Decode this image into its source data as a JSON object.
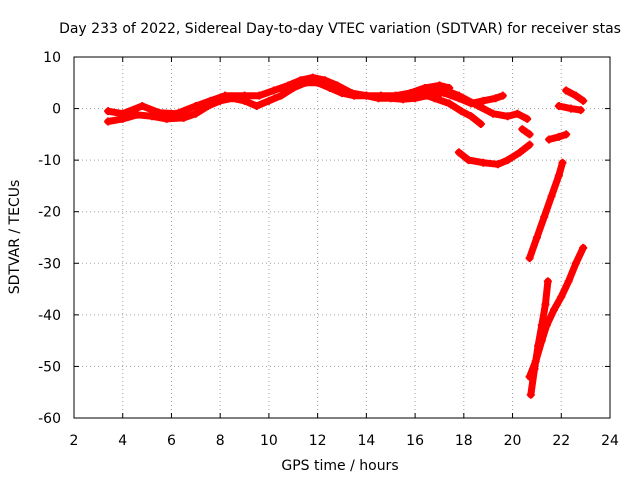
{
  "chart_data": {
    "type": "scatter",
    "title": "Day 233 of 2022, Sidereal Day-to-day VTEC variation (SDTVAR) for receiver stas",
    "xlabel": "GPS time / hours",
    "ylabel": "SDTVAR / TECUs",
    "xlim": [
      2,
      24
    ],
    "ylim": [
      -60,
      10
    ],
    "xticks": [
      2,
      4,
      6,
      8,
      10,
      12,
      14,
      16,
      18,
      20,
      22,
      24
    ],
    "yticks": [
      10,
      0,
      -10,
      -20,
      -30,
      -40,
      -50,
      -60
    ],
    "grid": true,
    "legend": "none",
    "series_color": "#ff0000",
    "series": [
      {
        "name": "main-band-low",
        "x": [
          3.4,
          4.0,
          4.6,
          5.2,
          5.8,
          6.5,
          7.0,
          7.5,
          8.0,
          8.5,
          9.0,
          9.5,
          10.0,
          10.5,
          11.0,
          11.5,
          12.0,
          12.5,
          13.0,
          13.5,
          14.0,
          14.5,
          15.0,
          15.5,
          16.0,
          16.5,
          17.0
        ],
        "y": [
          -2.5,
          -2.0,
          -1.2,
          -1.5,
          -2.0,
          -1.8,
          -1.0,
          0.5,
          1.5,
          2.0,
          1.5,
          0.5,
          1.5,
          2.5,
          4.0,
          5.0,
          5.0,
          4.0,
          3.0,
          2.5,
          2.5,
          2.0,
          2.0,
          1.8,
          2.0,
          2.5,
          2.8
        ]
      },
      {
        "name": "main-band-high",
        "x": [
          3.4,
          4.0,
          4.8,
          5.5,
          6.2,
          7.0,
          7.6,
          8.2,
          9.0,
          9.6,
          10.2,
          10.8,
          11.3,
          11.8,
          12.3,
          12.8,
          13.4,
          14.0,
          14.6,
          15.2,
          15.8,
          16.4,
          17.0,
          17.4
        ],
        "y": [
          -0.5,
          -1.0,
          0.5,
          -0.8,
          -1.0,
          0.5,
          1.5,
          2.5,
          2.5,
          2.5,
          3.5,
          4.5,
          5.5,
          6.0,
          5.5,
          4.5,
          3.0,
          2.5,
          2.5,
          2.5,
          3.0,
          4.0,
          4.5,
          4.0
        ]
      },
      {
        "name": "late-upper-track",
        "x": [
          16.5,
          17.2,
          17.8,
          18.3,
          18.8,
          19.3,
          19.6
        ],
        "y": [
          3.5,
          3.0,
          2.0,
          1.0,
          1.5,
          2.0,
          2.5
        ]
      },
      {
        "name": "late-lower-track",
        "x": [
          16.2,
          16.8,
          17.4,
          17.9,
          18.3,
          18.7
        ],
        "y": [
          3.0,
          2.0,
          1.0,
          -0.5,
          -1.5,
          -3.0
        ]
      },
      {
        "name": "late-mid-track",
        "x": [
          17.0,
          17.8,
          18.6,
          19.2,
          19.8,
          20.2,
          20.6
        ],
        "y": [
          4.0,
          2.5,
          0.5,
          -1.0,
          -1.5,
          -1.0,
          -2.0
        ]
      },
      {
        "name": "dip-arc",
        "x": [
          17.8,
          18.2,
          18.8,
          19.4,
          19.8,
          20.3,
          20.7
        ],
        "y": [
          -8.5,
          -10.0,
          -10.5,
          -10.8,
          -10.0,
          -8.5,
          -7.0
        ]
      },
      {
        "name": "short-segment",
        "x": [
          20.4,
          20.7
        ],
        "y": [
          -4.0,
          -5.0
        ]
      },
      {
        "name": "right-top-a",
        "x": [
          22.2,
          22.6,
          22.9
        ],
        "y": [
          3.5,
          2.5,
          1.5
        ]
      },
      {
        "name": "right-top-b",
        "x": [
          21.9,
          22.4,
          22.8
        ],
        "y": [
          0.5,
          0.0,
          -0.3
        ]
      },
      {
        "name": "right-minus5",
        "x": [
          21.5,
          21.9,
          22.2
        ],
        "y": [
          -6.0,
          -5.5,
          -5.0
        ]
      },
      {
        "name": "steep-rise-1",
        "x": [
          20.7,
          21.0,
          21.3,
          21.6,
          21.9,
          22.05
        ],
        "y": [
          -29.0,
          -25.0,
          -21.0,
          -17.0,
          -13.0,
          -10.5
        ]
      },
      {
        "name": "steep-rise-2",
        "x": [
          21.4,
          21.7,
          22.0,
          22.3,
          22.6,
          22.9
        ],
        "y": [
          -42.0,
          -39.0,
          -36.5,
          -33.5,
          -30.0,
          -27.0
        ]
      },
      {
        "name": "deep-rise-1",
        "x": [
          20.75,
          20.9,
          21.05,
          21.2,
          21.35,
          21.45
        ],
        "y": [
          -55.5,
          -50.5,
          -46.0,
          -42.0,
          -38.0,
          -33.5
        ]
      },
      {
        "name": "deep-rise-2",
        "x": [
          20.7,
          20.95,
          21.2,
          21.4
        ],
        "y": [
          -52.0,
          -49.0,
          -45.0,
          -42.0
        ]
      }
    ]
  }
}
